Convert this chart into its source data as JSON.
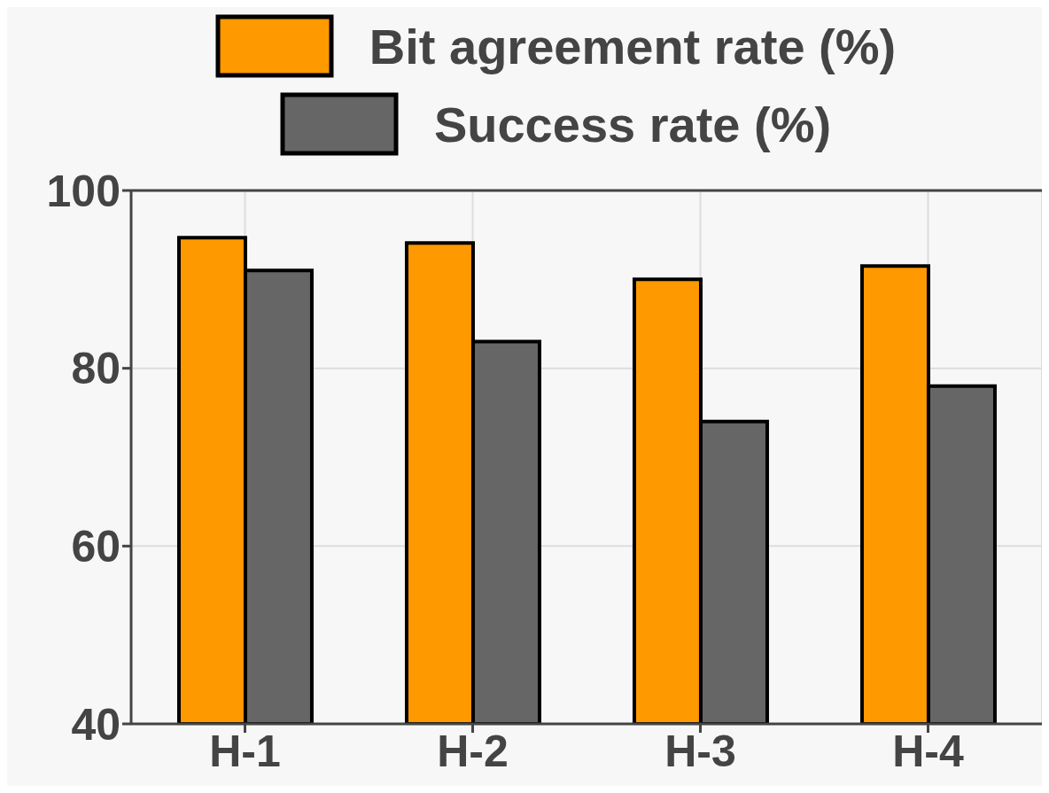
{
  "chart_data": {
    "type": "bar",
    "categories": [
      "H-1",
      "H-2",
      "H-3",
      "H-4"
    ],
    "series": [
      {
        "name": "Bit agreement rate (%)",
        "color": "#ff9900",
        "values": [
          94.7,
          94.1,
          90,
          91.5
        ]
      },
      {
        "name": "Success rate (%)",
        "color": "#666666",
        "values": [
          91,
          83,
          74,
          78
        ]
      }
    ],
    "ylim": [
      40,
      100
    ],
    "yticks": [
      40,
      60,
      80,
      100
    ],
    "grid": true,
    "legend": "top"
  }
}
